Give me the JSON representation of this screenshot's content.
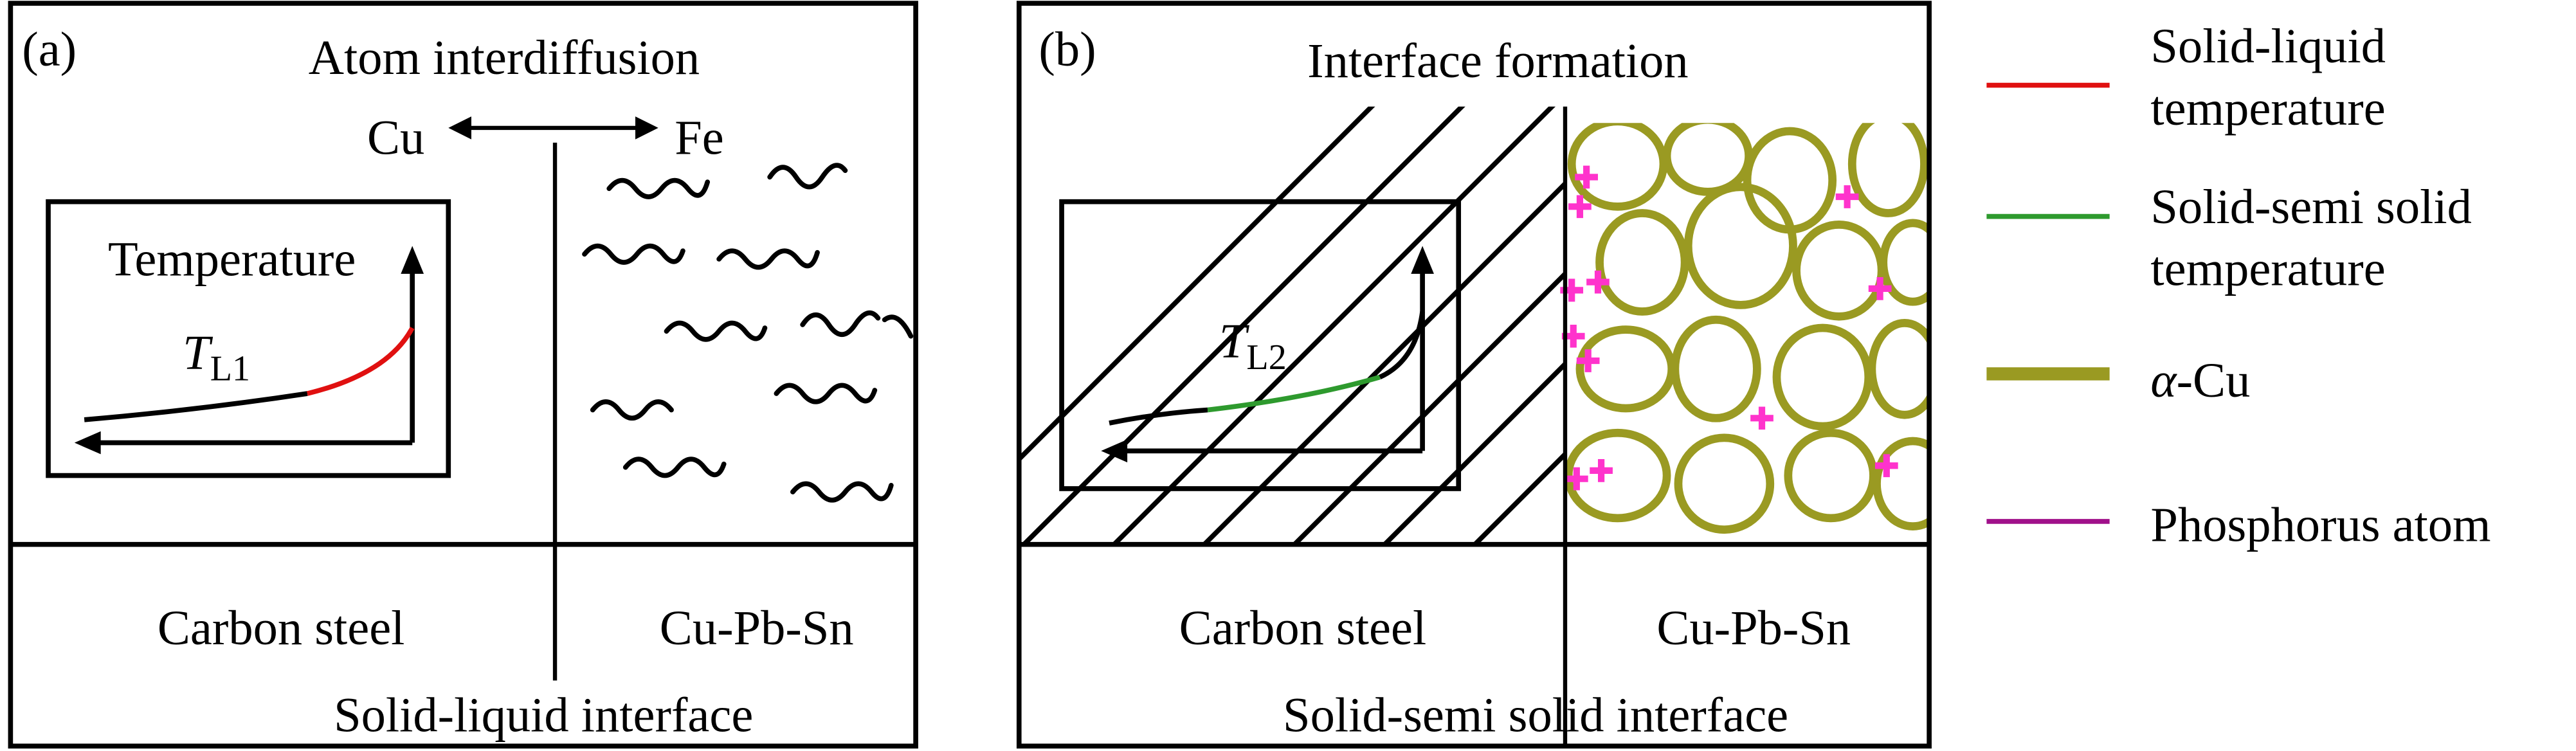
{
  "panels": [
    {
      "label": "(a)",
      "title": "Atom interdiffusion",
      "left_element": "Cu",
      "right_element": "Fe",
      "inset": {
        "axis_label": "Temperature",
        "curve_symbol": "T",
        "curve_subscript": "L1"
      },
      "left_region": "Carbon steel",
      "right_region": "Cu-Pb-Sn",
      "interface": "Solid-liquid interface"
    },
    {
      "label": "(b)",
      "title": "Interface formation",
      "inset": {
        "curve_symbol": "T",
        "curve_subscript": "L2"
      },
      "left_region": "Carbon steel",
      "right_region": "Cu-Pb-Sn",
      "interface": "Solid-semi solid interface"
    }
  ],
  "legend": [
    {
      "lines": [
        "Solid-liquid",
        "temperature"
      ]
    },
    {
      "lines": [
        "Solid-semi solid",
        "temperature"
      ]
    },
    {
      "symbol": "α",
      "text": "-Cu"
    },
    {
      "lines": [
        "Phosphorus atom"
      ]
    }
  ]
}
